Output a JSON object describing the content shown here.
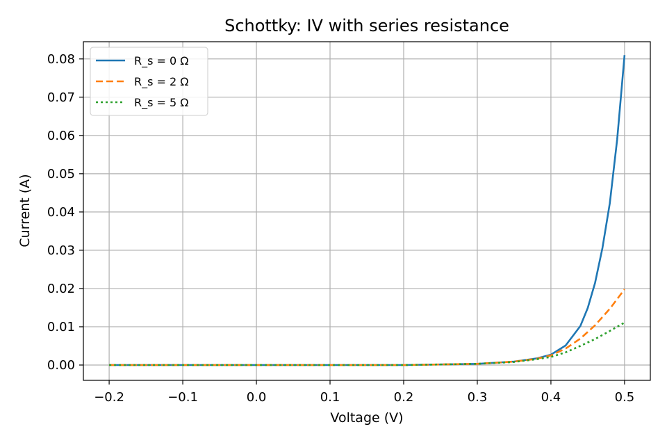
{
  "chart_data": {
    "type": "line",
    "title": "Schottky: IV with series resistance",
    "xlabel": "Voltage (V)",
    "ylabel": "Current (A)",
    "xlim": [
      -0.235,
      0.535
    ],
    "ylim": [
      -0.004,
      0.0845
    ],
    "grid": true,
    "legend_position": "top-left",
    "xticks": [
      -0.2,
      -0.1,
      0.0,
      0.1,
      0.2,
      0.3,
      0.4,
      0.5
    ],
    "xtick_labels": [
      "−0.2",
      "−0.1",
      "0.0",
      "0.1",
      "0.2",
      "0.3",
      "0.4",
      "0.5"
    ],
    "yticks": [
      0.0,
      0.01,
      0.02,
      0.03,
      0.04,
      0.05,
      0.06,
      0.07,
      0.08
    ],
    "ytick_labels": [
      "0.00",
      "0.01",
      "0.02",
      "0.03",
      "0.04",
      "0.05",
      "0.06",
      "0.07",
      "0.08"
    ],
    "series": [
      {
        "name": "R_s = 0 Ω",
        "color": "#1f77b4",
        "style": "solid",
        "x": [
          -0.2,
          -0.1,
          0.0,
          0.1,
          0.2,
          0.3,
          0.35,
          0.38,
          0.4,
          0.42,
          0.44,
          0.45,
          0.46,
          0.47,
          0.48,
          0.49,
          0.5
        ],
        "y": [
          0.0,
          0.0,
          0.0,
          0.0,
          0.0,
          0.0003,
          0.0009,
          0.0017,
          0.0027,
          0.0051,
          0.0102,
          0.0149,
          0.0215,
          0.0306,
          0.0423,
          0.059,
          0.081
        ]
      },
      {
        "name": "R_s = 2 Ω",
        "color": "#ff7f0e",
        "style": "dashed",
        "x": [
          -0.2,
          -0.1,
          0.0,
          0.1,
          0.2,
          0.3,
          0.35,
          0.38,
          0.4,
          0.42,
          0.44,
          0.46,
          0.48,
          0.5
        ],
        "y": [
          0.0,
          0.0,
          0.0,
          0.0,
          0.0,
          0.0003,
          0.0009,
          0.0016,
          0.0025,
          0.0043,
          0.0069,
          0.0104,
          0.0147,
          0.0198
        ]
      },
      {
        "name": "R_s = 5 Ω",
        "color": "#2ca02c",
        "style": "dotted",
        "x": [
          -0.2,
          -0.1,
          0.0,
          0.1,
          0.2,
          0.3,
          0.35,
          0.38,
          0.4,
          0.42,
          0.44,
          0.46,
          0.48,
          0.5
        ],
        "y": [
          0.0,
          0.0,
          0.0,
          0.0,
          0.0,
          0.0003,
          0.0008,
          0.0015,
          0.0021,
          0.0033,
          0.005,
          0.0068,
          0.0089,
          0.0111
        ]
      }
    ]
  }
}
